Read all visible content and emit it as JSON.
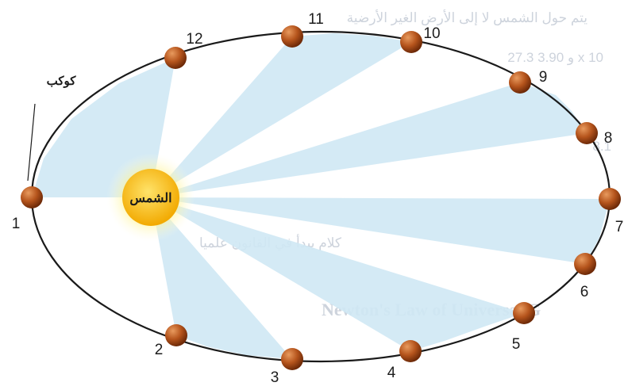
{
  "diagram": {
    "sun_label": "الشمس",
    "planet_label": "كوكب",
    "positions": [
      {
        "label": "1"
      },
      {
        "label": "2"
      },
      {
        "label": "3"
      },
      {
        "label": "4"
      },
      {
        "label": "5"
      },
      {
        "label": "6"
      },
      {
        "label": "7"
      },
      {
        "label": "8"
      },
      {
        "label": "9"
      },
      {
        "label": "10"
      },
      {
        "label": "11"
      },
      {
        "label": "12"
      }
    ]
  },
  "background_text": {
    "line_1": "يتم حول الشمس لا إلى الأرض الغير الأرضية",
    "line_2": "27.3 و 3.90 x 10",
    "line_3": "8.1",
    "line_4": "كلام يبدأ في القانون علميا",
    "line_5": "Newton's Law of Universal G"
  },
  "colors": {
    "sweep_fill": "#cfe8f4",
    "orbit": "#1a1a1a",
    "planet": "#b5541c",
    "sun_core": "#f7c21a",
    "sun_glow": "#fff176"
  }
}
